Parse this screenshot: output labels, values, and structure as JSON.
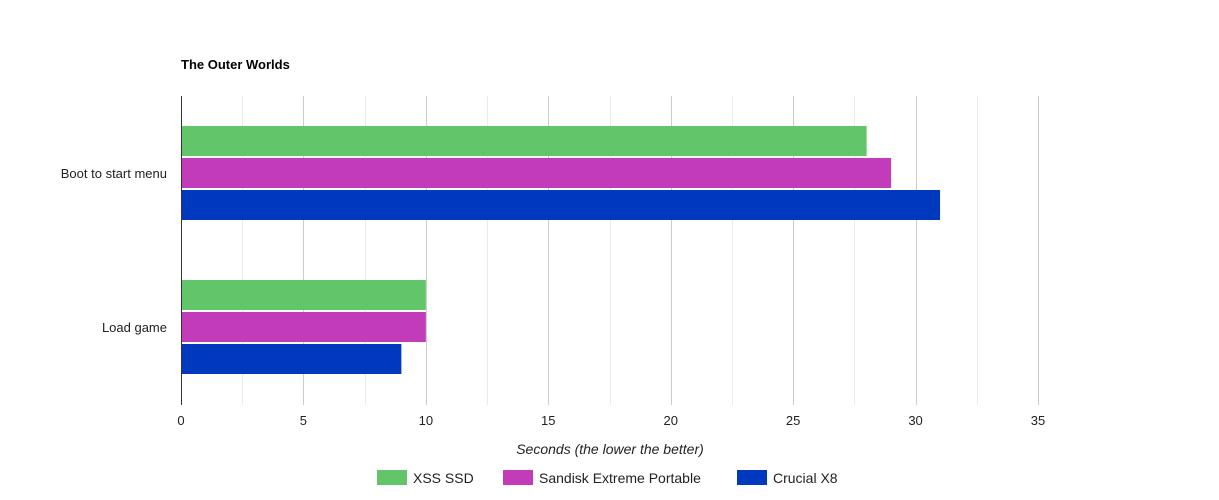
{
  "chart_data": {
    "type": "bar",
    "orientation": "horizontal",
    "title": "The Outer Worlds",
    "categories": [
      "Boot to start menu",
      "Load game"
    ],
    "series": [
      {
        "name": "XSS SSD",
        "color": "#62c56a",
        "values": [
          28,
          10
        ]
      },
      {
        "name": "Sandisk Extreme Portable",
        "color": "#c23cba",
        "values": [
          29,
          10
        ]
      },
      {
        "name": "Crucial X8",
        "color": "#0039bd",
        "values": [
          31,
          9
        ]
      }
    ],
    "xlabel": "Seconds (the lower the better)",
    "ylabel": "",
    "xlim": [
      0,
      35
    ],
    "x_ticks": [
      0,
      5,
      10,
      15,
      20,
      25,
      30,
      35
    ],
    "grid": true,
    "legend_position": "bottom"
  }
}
